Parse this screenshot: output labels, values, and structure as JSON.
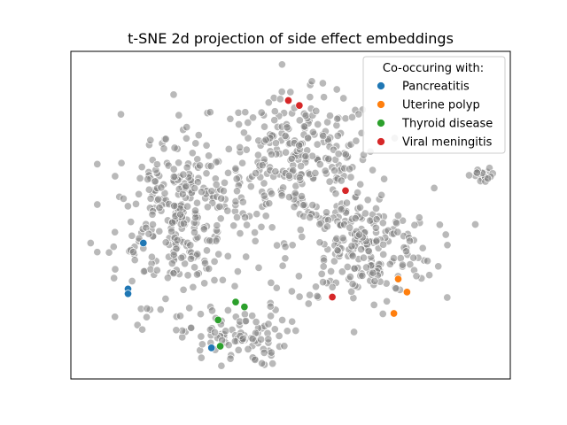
{
  "chart_data": {
    "type": "scatter",
    "title": "t-SNE 2d projection of side effect embeddings",
    "xlabel": "",
    "ylabel": "",
    "axes_ticks_visible": false,
    "xlim": [
      0,
      100
    ],
    "ylim": [
      0,
      100
    ],
    "grid": false,
    "legend": {
      "title": "Co-occuring with:",
      "placement": "top-right"
    },
    "background_points": {
      "color": "#808080",
      "opacity": 0.55,
      "approx_count": 950,
      "cluster_regions": [
        {
          "center": [
            25,
            50
          ],
          "spread": [
            10,
            18
          ],
          "share": 0.33
        },
        {
          "center": [
            52,
            67
          ],
          "spread": [
            12,
            13
          ],
          "share": 0.28
        },
        {
          "center": [
            66,
            40
          ],
          "spread": [
            11,
            12
          ],
          "share": 0.24
        },
        {
          "center": [
            37,
            13
          ],
          "spread": [
            8,
            6
          ],
          "share": 0.1
        },
        {
          "center": [
            94,
            62
          ],
          "spread": [
            2,
            1.5
          ],
          "share": 0.02
        }
      ],
      "outliers": [
        [
          4.5,
          41.5
        ]
      ]
    },
    "series": [
      {
        "name": "Pancreatitis",
        "color": "#1f77b4",
        "points": [
          [
            16.5,
            41.5
          ],
          [
            13,
            27.5
          ],
          [
            13,
            26
          ],
          [
            32,
            9.5
          ]
        ]
      },
      {
        "name": "Uterine polyp",
        "color": "#ff7f0e",
        "points": [
          [
            74.5,
            30.5
          ],
          [
            76.5,
            26.5
          ],
          [
            73.5,
            20
          ]
        ]
      },
      {
        "name": "Thyroid disease",
        "color": "#2ca02c",
        "points": [
          [
            37.5,
            23.5
          ],
          [
            39.5,
            22
          ],
          [
            33.5,
            18
          ],
          [
            34,
            10
          ]
        ]
      },
      {
        "name": "Viral meningitis",
        "color": "#d62728",
        "points": [
          [
            49.5,
            85
          ],
          [
            52,
            83.5
          ],
          [
            62.5,
            57.5
          ],
          [
            59.5,
            25
          ]
        ]
      }
    ]
  }
}
